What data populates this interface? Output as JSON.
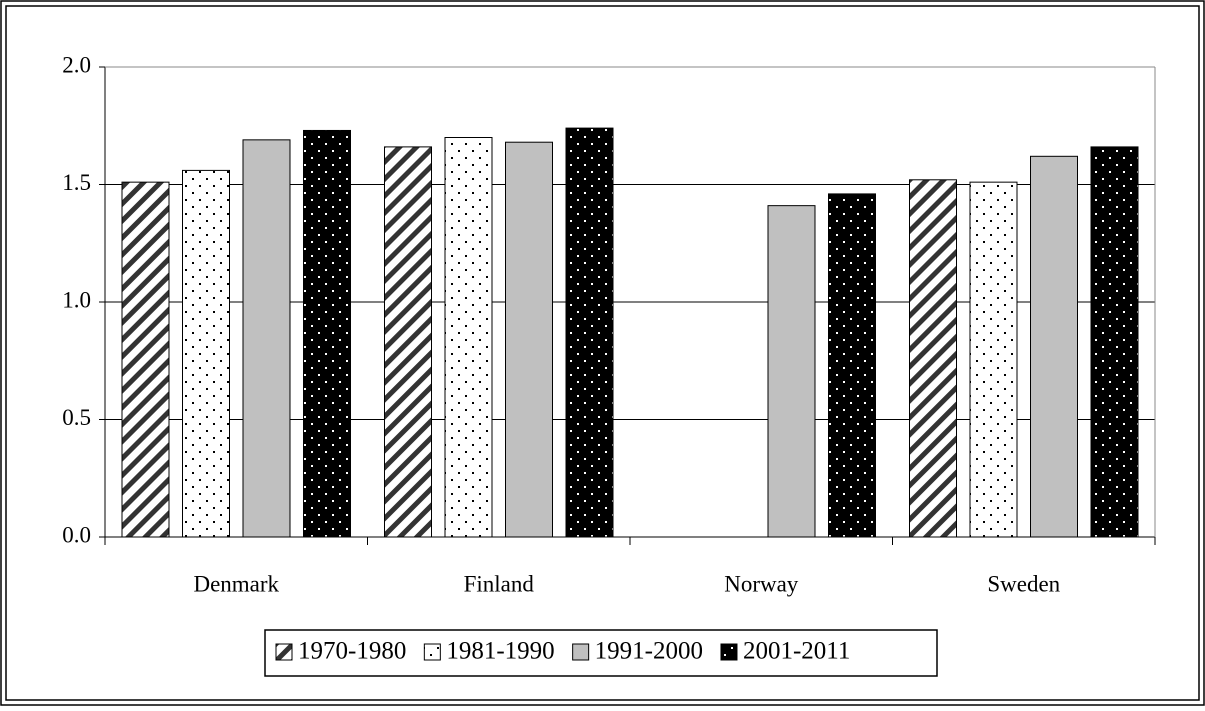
{
  "chart_data": {
    "type": "bar",
    "categories": [
      "Denmark",
      "Finland",
      "Norway",
      "Sweden"
    ],
    "series": [
      {
        "name": "1970-1980",
        "pattern": "diagonal",
        "color": "#000000",
        "values": [
          1.51,
          1.66,
          null,
          1.52
        ]
      },
      {
        "name": "1981-1990",
        "pattern": "dots",
        "color": "#ffffff",
        "values": [
          1.56,
          1.7,
          null,
          1.51
        ]
      },
      {
        "name": "1991-2000",
        "pattern": "solid",
        "color": "#c0c0c0",
        "values": [
          1.69,
          1.68,
          1.41,
          1.62
        ]
      },
      {
        "name": "2001-2011",
        "pattern": "dark-dots",
        "color": "#000000",
        "values": [
          1.73,
          1.74,
          1.46,
          1.66
        ]
      }
    ],
    "ylim": [
      0,
      2
    ],
    "yticks": [
      {
        "value": 0,
        "label": "0.0"
      },
      0.5,
      {
        "value": 1,
        "label": "1.0"
      },
      1.5,
      {
        "value": 2,
        "label": "2.0"
      }
    ],
    "grid": true,
    "legend": "bottom"
  }
}
